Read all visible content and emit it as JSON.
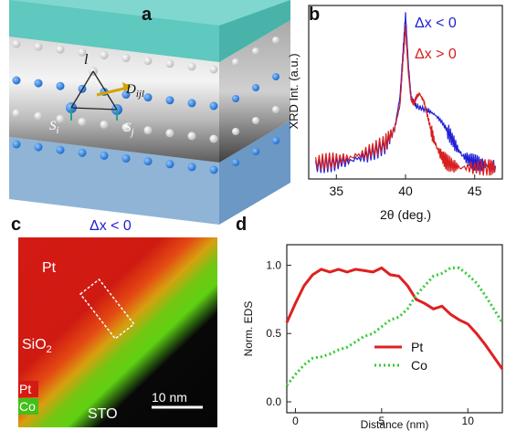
{
  "panels": {
    "a": {
      "label": "a",
      "site_label": "l",
      "vector_D": "D",
      "vector_D_sub": "ijl",
      "spin_i": "S",
      "spin_i_sub": "i",
      "spin_j": "S",
      "spin_j_sub": "j"
    },
    "b": {
      "label": "b"
    },
    "c": {
      "label": "c",
      "title": "Δx < 0",
      "text_pt": "Pt",
      "text_sio2": "SiO",
      "text_sio2_sub": "2",
      "text_sto": "STO",
      "legend_pt": "Pt",
      "legend_co": "Co",
      "scalebar": "10 nm"
    },
    "d": {
      "label": "d"
    }
  },
  "colors": {
    "blue": "#1f1fd6",
    "red": "#d81e1e",
    "green": "#33d633",
    "cyan_top": "#64cfc6"
  },
  "chart_data": [
    {
      "type": "line",
      "panel": "b",
      "xlabel": "2θ (deg.)",
      "ylabel": "XRD Int. (a.u.)",
      "xlim": [
        33,
        47
      ],
      "xticks": [
        35,
        40,
        45
      ],
      "tick_labels": [
        "35",
        "40",
        "45"
      ],
      "legend": [
        "Δx < 0",
        "Δx > 0"
      ],
      "series": [
        {
          "name": "Δx < 0",
          "color": "#1f1fd6",
          "x": [
            33.5,
            34.5,
            35.5,
            36.5,
            37.5,
            38.5,
            39.2,
            39.6,
            39.8,
            40.0,
            40.2,
            40.4,
            40.8,
            41.5,
            42.0,
            42.5,
            43.0,
            43.5,
            44.0,
            44.5,
            45.0,
            45.5,
            46.0,
            46.5
          ],
          "y": [
            0.08,
            0.09,
            0.1,
            0.12,
            0.15,
            0.2,
            0.3,
            0.5,
            0.75,
            1.0,
            0.7,
            0.5,
            0.44,
            0.42,
            0.4,
            0.36,
            0.3,
            0.22,
            0.15,
            0.12,
            0.1,
            0.09,
            0.08,
            0.08
          ]
        },
        {
          "name": "Δx > 0",
          "color": "#d81e1e",
          "x": [
            33.5,
            34.5,
            35.5,
            36.5,
            37.5,
            38.5,
            39.2,
            39.6,
            39.8,
            40.0,
            40.2,
            40.4,
            40.6,
            40.8,
            41.0,
            41.3,
            41.6,
            41.9,
            42.2,
            42.6,
            43.0,
            43.5,
            44.0,
            45.0,
            46.0,
            46.5
          ],
          "y": [
            0.1,
            0.11,
            0.12,
            0.14,
            0.17,
            0.22,
            0.3,
            0.45,
            0.7,
            0.92,
            0.65,
            0.48,
            0.46,
            0.5,
            0.52,
            0.48,
            0.38,
            0.28,
            0.2,
            0.14,
            0.1,
            0.08,
            0.07,
            0.07,
            0.07,
            0.07
          ]
        }
      ]
    },
    {
      "type": "line",
      "panel": "d",
      "xlabel": "Distance (nm)",
      "ylabel": "Norm. EDS",
      "xlim": [
        -0.5,
        12
      ],
      "ylim": [
        -0.08,
        1.15
      ],
      "xticks": [
        0,
        5,
        10
      ],
      "yticks": [
        0.0,
        0.5,
        1.0
      ],
      "xtick_labels": [
        "0",
        "5",
        "10"
      ],
      "ytick_labels": [
        "0.0",
        "0.5",
        "1.0"
      ],
      "legend": [
        "Pt",
        "Co"
      ],
      "series": [
        {
          "name": "Pt",
          "color": "#e02020",
          "style": "solid",
          "x": [
            -0.5,
            0,
            0.5,
            1,
            1.5,
            2,
            2.5,
            3,
            3.5,
            4,
            4.5,
            5,
            5.5,
            6,
            6.5,
            7,
            7.5,
            8,
            8.5,
            9,
            9.5,
            10,
            10.5,
            11,
            11.5,
            12
          ],
          "y": [
            0.58,
            0.72,
            0.85,
            0.93,
            0.97,
            0.95,
            0.97,
            0.95,
            0.97,
            0.96,
            0.95,
            0.98,
            0.93,
            0.92,
            0.85,
            0.75,
            0.72,
            0.68,
            0.7,
            0.64,
            0.6,
            0.57,
            0.5,
            0.42,
            0.33,
            0.24
          ]
        },
        {
          "name": "Co",
          "color": "#33cc33",
          "style": "dotted",
          "x": [
            -0.5,
            0,
            0.5,
            1,
            1.5,
            2,
            2.5,
            3,
            3.5,
            4,
            4.5,
            5,
            5.5,
            6,
            6.5,
            7,
            7.5,
            8,
            8.5,
            9,
            9.5,
            10,
            10.5,
            11,
            11.5,
            12
          ],
          "y": [
            0.12,
            0.2,
            0.27,
            0.32,
            0.33,
            0.35,
            0.38,
            0.4,
            0.44,
            0.48,
            0.5,
            0.55,
            0.6,
            0.62,
            0.68,
            0.78,
            0.85,
            0.92,
            0.94,
            0.98,
            0.98,
            0.93,
            0.87,
            0.78,
            0.68,
            0.58
          ]
        }
      ]
    }
  ]
}
